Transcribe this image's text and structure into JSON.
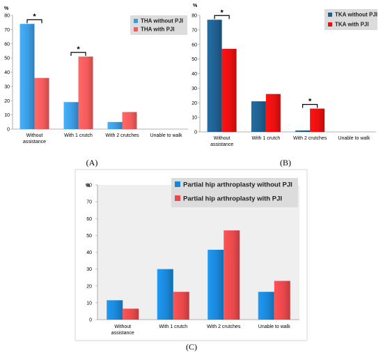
{
  "chart_data": [
    {
      "type": "bar",
      "panel_label": "(A)",
      "unit": "%",
      "categories": [
        [
          "Without",
          "assistance"
        ],
        [
          "With 1 crutch"
        ],
        [
          "With 2 crutches"
        ],
        [
          "Unable to walk"
        ]
      ],
      "ylim": [
        0,
        80
      ],
      "yticks": [
        0,
        10,
        20,
        30,
        40,
        50,
        60,
        70,
        80
      ],
      "series": [
        {
          "name": "THA without PJI",
          "color": "#3a9bdf",
          "values": [
            74,
            19,
            5,
            0
          ]
        },
        {
          "name": "THA with PJI",
          "color": "#f45b5b",
          "values": [
            36,
            51,
            12,
            0
          ]
        }
      ],
      "significance": [
        0,
        1
      ],
      "significance_label": "*",
      "legend_position": "top-right",
      "grid": false
    },
    {
      "type": "bar",
      "panel_label": "(B)",
      "unit": "%",
      "categories": [
        [
          "Without",
          "assistance"
        ],
        [
          "With 1 crutch"
        ],
        [
          "With 2 crutches"
        ],
        [
          "Unable to walk"
        ]
      ],
      "ylim": [
        0,
        80
      ],
      "yticks": [
        0,
        10,
        20,
        30,
        40,
        50,
        60,
        70,
        80
      ],
      "series": [
        {
          "name": "TKA without PJI",
          "color": "#1f5f8f",
          "values": [
            77,
            21,
            1,
            0
          ]
        },
        {
          "name": "TKA with PJI",
          "color": "#e81010",
          "values": [
            57,
            26,
            16,
            0
          ]
        }
      ],
      "significance": [
        0,
        2
      ],
      "significance_label": "*",
      "legend_position": "top-right",
      "grid": false
    },
    {
      "type": "bar",
      "panel_label": "(C)",
      "unit": "%",
      "categories": [
        [
          "Without",
          "assistance"
        ],
        [
          "With 1 crutch"
        ],
        [
          "With 2 crutches"
        ],
        [
          "Unable to walk"
        ]
      ],
      "ylim": [
        0,
        80
      ],
      "yticks": [
        0,
        10,
        20,
        30,
        40,
        50,
        60,
        70,
        80
      ],
      "series": [
        {
          "name": "Partial hip arthroplasty without PJI",
          "color": "#1a86d6",
          "values": [
            11.5,
            30,
            41.5,
            16.5
          ]
        },
        {
          "name": "Partial hip arthroplasty with PJI",
          "color": "#e8484a",
          "values": [
            6.5,
            16.5,
            53,
            23
          ]
        }
      ],
      "significance": [],
      "legend_position": "top-right",
      "grid": false
    }
  ]
}
